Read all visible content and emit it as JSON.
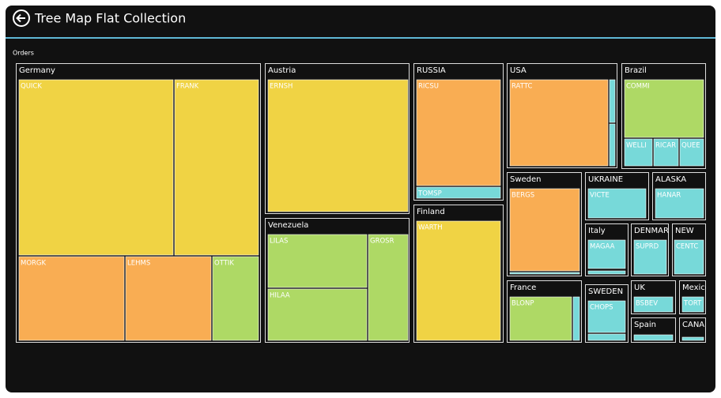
{
  "header": {
    "title": "Tree Map Flat Collection"
  },
  "treemap": {
    "label": "Orders",
    "groups": [
      {
        "label": "Germany",
        "items": [
          {
            "label": "QUICK",
            "color": "#f0d344"
          },
          {
            "label": "FRANK",
            "color": "#f0d344"
          },
          {
            "label": "MORGK",
            "color": "#f9ad53"
          },
          {
            "label": "LEHMS",
            "color": "#f9ad53"
          },
          {
            "label": "OTTIK",
            "color": "#aed965"
          }
        ]
      },
      {
        "label": "Austria",
        "items": [
          {
            "label": "ERNSH",
            "color": "#f0d344"
          }
        ]
      },
      {
        "label": "Venezuela",
        "items": [
          {
            "label": "LILAS",
            "color": "#aed965"
          },
          {
            "label": "GROSR",
            "color": "#aed965"
          },
          {
            "label": "HILAA",
            "color": "#aed965"
          }
        ]
      },
      {
        "label": "RUSSIA",
        "items": [
          {
            "label": "RICSU",
            "color": "#f9ad53"
          },
          {
            "label": "TOMSP",
            "color": "#77d9d9"
          }
        ]
      },
      {
        "label": "Finland",
        "items": [
          {
            "label": "WARTH",
            "color": "#f0d344"
          }
        ]
      },
      {
        "label": "USA",
        "items": [
          {
            "label": "RATTC",
            "color": "#f9ad53"
          },
          {
            "color": "#77d9d9"
          },
          {
            "color": "#77d9d9"
          }
        ]
      },
      {
        "label": "Brazil",
        "items": [
          {
            "label": "COMMI",
            "color": "#aed965"
          },
          {
            "label": "WELLI",
            "color": "#77d9d9"
          },
          {
            "label": "RICAR",
            "color": "#77d9d9"
          },
          {
            "label": "QUEE",
            "color": "#77d9d9"
          }
        ]
      },
      {
        "label": "Sweden",
        "items": [
          {
            "label": "BERGS",
            "color": "#f9ad53"
          },
          {
            "color": "#77d9d9"
          }
        ]
      },
      {
        "label": "UKRAINE",
        "items": [
          {
            "label": "VICTE",
            "color": "#77d9d9"
          }
        ]
      },
      {
        "label": "ALASKA",
        "items": [
          {
            "label": "HANAR",
            "color": "#77d9d9"
          }
        ]
      },
      {
        "label": "Italy",
        "items": [
          {
            "label": "MAGAA",
            "color": "#77d9d9"
          },
          {
            "color": "#77d9d9"
          }
        ]
      },
      {
        "label": "DENMAR",
        "items": [
          {
            "label": "SUPRD",
            "color": "#77d9d9"
          }
        ]
      },
      {
        "label": "NEW",
        "items": [
          {
            "label": "CENTC",
            "color": "#77d9d9"
          }
        ]
      },
      {
        "label": "France",
        "items": [
          {
            "label": "BLONP",
            "color": "#aed965"
          },
          {
            "color": "#77d9d9"
          }
        ]
      },
      {
        "label": "SWEDEN",
        "items": [
          {
            "label": "CHOPS",
            "color": "#77d9d9"
          },
          {
            "color": "#77d9d9"
          }
        ]
      },
      {
        "label": "UK",
        "items": [
          {
            "label": "BSBEV",
            "color": "#77d9d9"
          }
        ]
      },
      {
        "label": "Mexico",
        "items": [
          {
            "label": "TORT",
            "color": "#77d9d9"
          }
        ]
      },
      {
        "label": "Spain",
        "items": [
          {
            "color": "#77d9d9"
          }
        ]
      },
      {
        "label": "CANA",
        "items": [
          {
            "color": "#77d9d9"
          }
        ]
      }
    ]
  }
}
